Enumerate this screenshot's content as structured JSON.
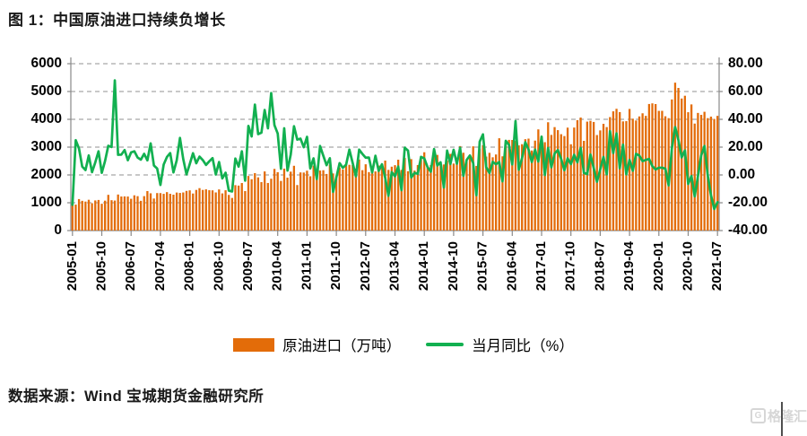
{
  "header": {
    "title": "图 1：中国原油进口持续负增长"
  },
  "footer": {
    "source": "数据来源：Wind 宝城期货金融研究所"
  },
  "watermark": {
    "logo_letter": "G",
    "text": "格隆汇"
  },
  "colors": {
    "bar": "#E36C09",
    "line": "#12B050",
    "grid": "#A6A6A6",
    "axis": "#898989",
    "tick_text": "#000000"
  },
  "chart_data": {
    "type": "bar",
    "subtype": "combo-bar-line",
    "x_start": "2005-01",
    "x_end": "2021-07",
    "months_count": 199,
    "x_tick_labels": [
      "2005-01",
      "2005-10",
      "2006-07",
      "2007-04",
      "2008-01",
      "2008-10",
      "2009-07",
      "2010-04",
      "2011-01",
      "2011-10",
      "2012-07",
      "2013-04",
      "2014-01",
      "2014-10",
      "2015-07",
      "2016-04",
      "2017-01",
      "2017-10",
      "2018-07",
      "2019-04",
      "2020-01",
      "2020-10",
      "2021-07"
    ],
    "x_tick_every_months": 9,
    "left_axis": {
      "min": 0,
      "max": 6000,
      "step": 1000,
      "labels": [
        "0",
        "1000",
        "2000",
        "3000",
        "4000",
        "5000",
        "6000"
      ]
    },
    "right_axis": {
      "min": -40,
      "max": 80,
      "step": 20,
      "labels": [
        "-40.00",
        "-20.00",
        "0.00",
        "20.00",
        "40.00",
        "60.00",
        "80.00"
      ]
    },
    "grid": "dashed-horizontal",
    "legend_position": "bottom-center",
    "series": [
      {
        "name": "原油进口（万吨）",
        "type": "bar",
        "axis": "left",
        "color": "#E36C09",
        "values": [
          909,
          933,
          1132,
          1069,
          1042,
          1107,
          984,
          1083,
          1100,
          963,
          1075,
          1285,
          1092,
          1079,
          1296,
          1225,
          1228,
          1224,
          1143,
          1267,
          1237,
          1069,
          1238,
          1420,
          1340,
          1152,
          1348,
          1347,
          1320,
          1382,
          1322,
          1290,
          1367,
          1353,
          1370,
          1426,
          1445,
          1332,
          1461,
          1525,
          1461,
          1482,
          1451,
          1446,
          1371,
          1479,
          1336,
          1449,
          1282,
          1173,
          1633,
          1617,
          1709,
          1421,
          1963,
          1846,
          2065,
          1913,
          1742,
          2126,
          1711,
          1864,
          2217,
          2098,
          1785,
          2227,
          1902,
          2118,
          2329,
          1637,
          2090,
          2086,
          2152,
          1952,
          2334,
          2065,
          2158,
          2170,
          2035,
          2372,
          2054,
          1869,
          2267,
          2193,
          2341,
          2364,
          2355,
          2227,
          2555,
          2172,
          2383,
          2102,
          2068,
          2126,
          2337,
          2386,
          2516,
          2182,
          2297,
          2351,
          2548,
          2182,
          2611,
          2133,
          2568,
          2158,
          2355,
          2678,
          2816,
          2305,
          2352,
          2788,
          2721,
          2380,
          2377,
          2519,
          2757,
          2409,
          2541,
          3037,
          2798,
          2554,
          2681,
          3029,
          2324,
          2949,
          3071,
          2659,
          2795,
          2635,
          2736,
          3319,
          2669,
          3180,
          3261,
          3258,
          3224,
          3062,
          3106,
          3285,
          3306,
          2879,
          3235,
          3638,
          3403,
          3178,
          3895,
          3439,
          3720,
          3611,
          3465,
          3398,
          3701,
          3103,
          3704,
          3970,
          4064,
          3226,
          3917,
          3946,
          3905,
          3435,
          3602,
          3838,
          3721,
          4080,
          4287,
          4378,
          4260,
          3926,
          3934,
          4373,
          4023,
          3958,
          4104,
          4217,
          4124,
          4551,
          4574,
          4548,
          4304,
          4305,
          4110,
          4043,
          4714,
          5318,
          5129,
          4748,
          4848,
          4256,
          4536,
          3847,
          4230,
          4160,
          4271,
          4043,
          4097,
          4014,
          4124
        ]
      },
      {
        "name": "当月同比（%）",
        "type": "line",
        "axis": "right",
        "color": "#12B050",
        "values": [
          -21.5,
          25.0,
          19.0,
          6.0,
          3.5,
          14.0,
          2.0,
          9.0,
          17.0,
          1.5,
          10.0,
          21.0,
          20.1,
          68.0,
          14.5,
          14.6,
          17.9,
          10.6,
          16.2,
          17.0,
          12.5,
          11.0,
          15.2,
          10.5,
          22.7,
          6.8,
          4.6,
          -7.2,
          7.5,
          12.9,
          15.7,
          1.8,
          10.5,
          26.6,
          11.5,
          0.4,
          7.8,
          15.6,
          8.4,
          13.2,
          10.7,
          7.2,
          9.8,
          12.1,
          0.3,
          9.3,
          -2.5,
          1.6,
          -11.3,
          -11.9,
          11.8,
          6.0,
          17.0,
          -4.1,
          35.3,
          27.7,
          50.6,
          29.3,
          30.4,
          46.7,
          33.5,
          58.9,
          35.8,
          29.8,
          4.4,
          33.6,
          3.1,
          14.7,
          35.0,
          25.4,
          26.1,
          19.9,
          27.4,
          4.7,
          11.9,
          -2.9,
          20.8,
          13.8,
          7.0,
          12.0,
          -12.2,
          -1.8,
          8.5,
          5.1,
          7.4,
          18.2,
          8.7,
          -1.0,
          18.2,
          15.1,
          12.4,
          12.5,
          1.8,
          13.8,
          2.9,
          7.7,
          -2.1,
          -15.0,
          2.0,
          -1.0,
          6.0,
          -11.0,
          19.6,
          17.5,
          -1.8,
          1.5,
          0.8,
          13.0,
          11.9,
          5.6,
          2.3,
          18.6,
          6.8,
          9.1,
          -9.0,
          17.5,
          7.8,
          18.1,
          8.0,
          19.5,
          -0.6,
          10.8,
          14.0,
          8.6,
          -14.6,
          23.9,
          29.2,
          5.6,
          1.4,
          9.4,
          7.7,
          9.3,
          -4.6,
          24.5,
          21.6,
          7.6,
          38.7,
          3.8,
          12.0,
          23.5,
          18.3,
          9.3,
          18.2,
          9.6,
          27.5,
          -0.1,
          19.4,
          5.5,
          15.4,
          17.9,
          11.6,
          3.4,
          11.9,
          7.8,
          14.5,
          9.1,
          19.4,
          1.5,
          0.6,
          14.7,
          5.0,
          -4.9,
          3.9,
          12.9,
          0.5,
          31.5,
          15.8,
          29.9,
          4.8,
          21.7,
          0.4,
          10.8,
          3.0,
          15.2,
          13.9,
          9.9,
          10.8,
          11.5,
          6.3,
          3.9,
          5.2,
          5.2,
          4.5,
          -7.5,
          19.2,
          34.4,
          25.0,
          12.6,
          17.6,
          -6.5,
          -0.8,
          -15.4,
          -0.9,
          14.1,
          20.8,
          -0.2,
          -14.6,
          -24.5,
          -19.6
        ]
      }
    ]
  }
}
